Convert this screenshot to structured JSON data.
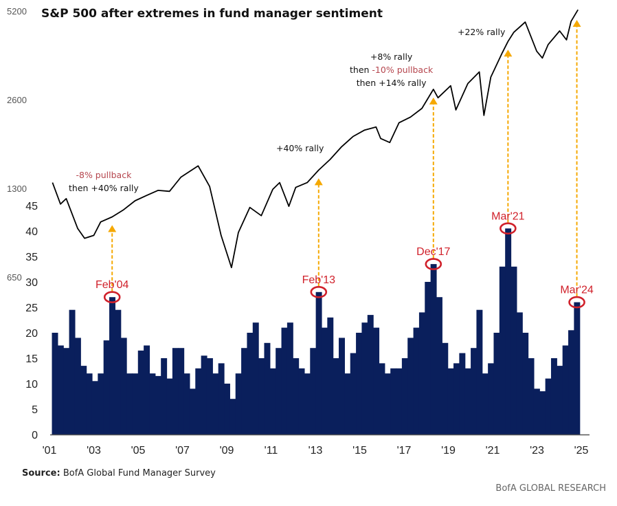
{
  "chart_data": {
    "type": "bar+line",
    "title": "S&P 500 after extremes in fund manager sentiment",
    "source_label": "Source:",
    "source_text": "BofA Global Fund Manager Survey",
    "brand": "BofA GLOBAL RESEARCH",
    "x_ticks": [
      "'01",
      "'03",
      "'05",
      "'07",
      "'09",
      "'11",
      "'13",
      "'15",
      "'17",
      "'19",
      "'21",
      "'23",
      "'25"
    ],
    "bar_axis": {
      "ticks": [
        "0",
        "5",
        "10",
        "15",
        "20",
        "25",
        "30",
        "35",
        "40",
        "45"
      ],
      "ylim": [
        0,
        45
      ]
    },
    "line_axis": {
      "ticks": [
        "650",
        "1300",
        "2600",
        "5200"
      ],
      "scale": "log",
      "ylim": [
        650,
        5200
      ]
    },
    "colors": {
      "bars": "#0a1f5c",
      "line": "#000000",
      "arrow": "#f5a800",
      "highlight": "#d0202a"
    },
    "bars": {
      "name": "Fund manager sentiment extremes",
      "x": [
        2001.5,
        2001.75,
        2002,
        2002.25,
        2002.5,
        2002.75,
        2003,
        2003.25,
        2003.5,
        2003.75,
        2004,
        2004.25,
        2004.5,
        2004.75,
        2005,
        2005.25,
        2005.5,
        2005.75,
        2006,
        2006.25,
        2006.5,
        2006.75,
        2007,
        2007.25,
        2007.5,
        2007.75,
        2008,
        2008.25,
        2008.5,
        2008.75,
        2009,
        2009.25,
        2009.5,
        2009.75,
        2010,
        2010.25,
        2010.5,
        2010.75,
        2011,
        2011.25,
        2011.5,
        2011.75,
        2012,
        2012.25,
        2012.5,
        2012.75,
        2013,
        2013.25,
        2013.5,
        2013.75,
        2014,
        2014.25,
        2014.5,
        2014.75,
        2015,
        2015.25,
        2015.5,
        2015.75,
        2016,
        2016.25,
        2016.5,
        2016.75,
        2017,
        2017.25,
        2017.5,
        2017.75,
        2018,
        2018.25,
        2018.5,
        2018.75,
        2019,
        2019.25,
        2019.5,
        2019.75,
        2020,
        2020.25,
        2020.5,
        2020.75,
        2021,
        2021.25,
        2021.5,
        2021.75,
        2022,
        2022.25,
        2022.5,
        2022.75,
        2023,
        2023.25,
        2023.5,
        2023.75,
        2024,
        2024.25
      ],
      "values": [
        20,
        17.5,
        17,
        24.5,
        19,
        13.5,
        12,
        10.5,
        12,
        18.5,
        27,
        24.5,
        19,
        12,
        12,
        16.5,
        17.5,
        12,
        11.5,
        15,
        11,
        17,
        17,
        12,
        9,
        13,
        15.5,
        15,
        12,
        14,
        10,
        7,
        12,
        17,
        20,
        22,
        15,
        18,
        13,
        17,
        21,
        22,
        15,
        13,
        12,
        17,
        28,
        21,
        23,
        15,
        19,
        12,
        16,
        20,
        22,
        23.5,
        21,
        14,
        12,
        13,
        13,
        15,
        19,
        21,
        24,
        30,
        33.5,
        27,
        18,
        13,
        14,
        16,
        13,
        17,
        24.5,
        12,
        14,
        20,
        33,
        40.5,
        33,
        24,
        20,
        15,
        9,
        8.5,
        11,
        15,
        13.5,
        17.5,
        20.5,
        26
      ]
    },
    "line": {
      "name": "S&P 500",
      "x": [
        2001.4,
        2001.75,
        2002,
        2002.5,
        2002.8,
        2003.2,
        2003.5,
        2004,
        2004.5,
        2005,
        2005.5,
        2006,
        2006.5,
        2007,
        2007.75,
        2008.25,
        2008.75,
        2009.2,
        2009.5,
        2010,
        2010.5,
        2011,
        2011.3,
        2011.7,
        2012,
        2012.5,
        2013,
        2013.5,
        2014,
        2014.5,
        2015,
        2015.5,
        2015.7,
        2016.1,
        2016.5,
        2017,
        2017.5,
        2018,
        2018.2,
        2018.75,
        2018.98,
        2019.5,
        2020,
        2020.2,
        2020.5,
        2021,
        2021.25,
        2021.5,
        2022,
        2022.5,
        2022.75,
        2023,
        2023.5,
        2023.8,
        2024,
        2024.3
      ],
      "values": [
        1360,
        1150,
        1200,
        950,
        880,
        900,
        1000,
        1040,
        1100,
        1180,
        1230,
        1280,
        1270,
        1420,
        1550,
        1320,
        900,
        700,
        920,
        1120,
        1050,
        1290,
        1360,
        1130,
        1310,
        1360,
        1500,
        1630,
        1800,
        1950,
        2050,
        2100,
        1920,
        1860,
        2170,
        2270,
        2430,
        2820,
        2640,
        2900,
        2400,
        2950,
        3230,
        2300,
        3100,
        3750,
        4100,
        4400,
        4770,
        3800,
        3600,
        4000,
        4450,
        4150,
        4800,
        5250
      ]
    },
    "highlights": [
      {
        "label": "Feb'04",
        "x": 2004.0,
        "value": 27
      },
      {
        "label": "Feb'13",
        "x": 2013.0,
        "value": 28
      },
      {
        "label": "Dec'17",
        "x": 2018.0,
        "value": 33.5
      },
      {
        "label": "Mar'21",
        "x": 2021.25,
        "value": 40.5
      },
      {
        "label": "Mar'24",
        "x": 2024.25,
        "value": 26
      }
    ],
    "annotations": {
      "a1_line1": "-8% pullback",
      "a1_line2": "then +40% rally",
      "a2": "+40% rally",
      "a3_line1": "+8% rally",
      "a3_then": "then ",
      "a3_pull": "-10% pullback",
      "a3_line3": "then +14% rally",
      "a4": "+22% rally"
    }
  }
}
